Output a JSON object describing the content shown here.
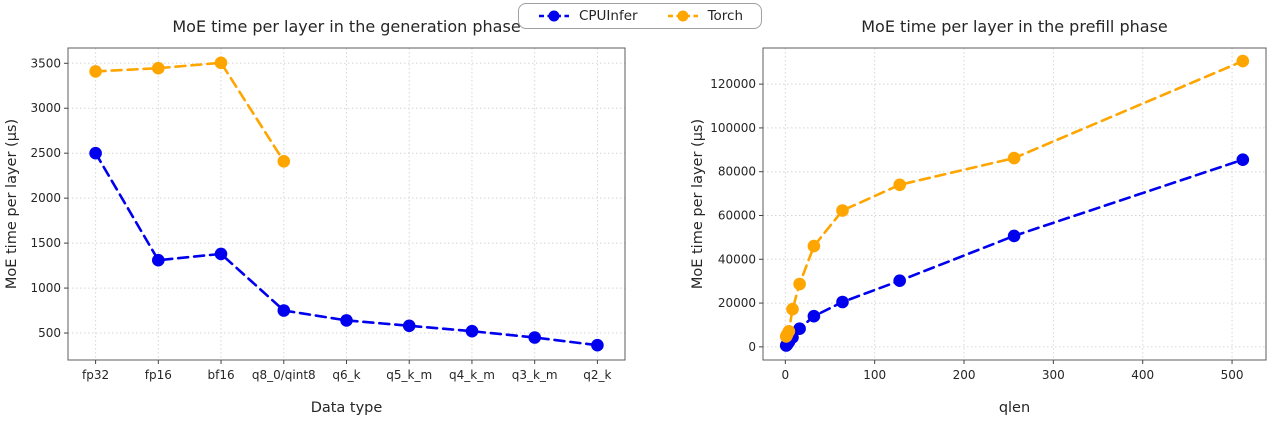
{
  "legend": {
    "items": [
      {
        "label": "CPUInfer",
        "color": "#0000ee"
      },
      {
        "label": "Torch",
        "color": "#ffa500"
      }
    ]
  },
  "chart_data": [
    {
      "type": "line",
      "title": "MoE time per layer in the generation phase",
      "xlabel": "Data type",
      "ylabel": "MoE time per layer (μs)",
      "categories": [
        "fp32",
        "fp16",
        "bf16",
        "q8_0/qint8",
        "q6_k",
        "q5_k_m",
        "q4_k_m",
        "q3_k_m",
        "q2_k"
      ],
      "yticks": [
        500,
        1000,
        1500,
        2000,
        2500,
        3000,
        3500
      ],
      "ylim": [
        200,
        3670
      ],
      "grid": true,
      "legend_position": "figure-top-center",
      "series": [
        {
          "name": "CPUInfer",
          "color": "#0000ee",
          "values": [
            2500,
            1310,
            1380,
            750,
            640,
            580,
            520,
            450,
            365
          ]
        },
        {
          "name": "Torch",
          "color": "#ffa500",
          "values": [
            3410,
            3445,
            3505,
            2410,
            null,
            null,
            null,
            null,
            null
          ]
        }
      ]
    },
    {
      "type": "line",
      "title": "MoE time per layer in the prefill phase",
      "xlabel": "qlen",
      "ylabel": "MoE time per layer (μs)",
      "x": [
        1,
        2,
        4,
        8,
        16,
        32,
        64,
        128,
        256,
        512
      ],
      "xticks": [
        0,
        100,
        200,
        300,
        400,
        500
      ],
      "xlim": [
        -25,
        538
      ],
      "yticks": [
        0,
        20000,
        40000,
        60000,
        80000,
        100000,
        120000
      ],
      "ylim": [
        -6000,
        136500
      ],
      "grid": true,
      "legend_position": "figure-top-center",
      "series": [
        {
          "name": "CPUInfer",
          "color": "#0000ee",
          "values": [
            600,
            1100,
            2200,
            4300,
            8300,
            14000,
            20500,
            30200,
            50700,
            85500
          ]
        },
        {
          "name": "Torch",
          "color": "#ffa500",
          "values": [
            4800,
            5600,
            7100,
            17200,
            28700,
            46000,
            62300,
            74000,
            86200,
            130500
          ]
        }
      ]
    }
  ]
}
